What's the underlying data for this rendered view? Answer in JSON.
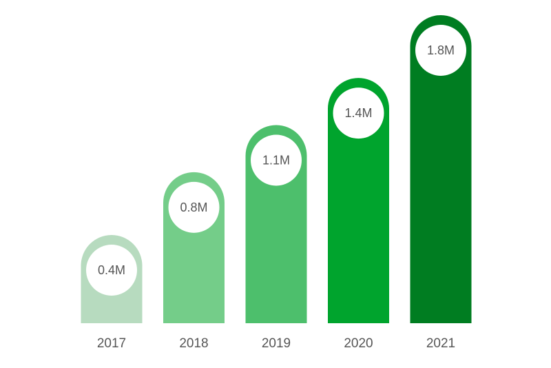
{
  "chart_data": {
    "type": "bar",
    "categories": [
      "2017",
      "2018",
      "2019",
      "2020",
      "2021"
    ],
    "values": [
      0.4,
      0.8,
      1.1,
      1.4,
      1.8
    ],
    "value_labels": [
      "0.4M",
      "0.8M",
      "1.1M",
      "1.4M",
      "1.8M"
    ],
    "bar_colors": [
      "#b7dbbf",
      "#74cd89",
      "#4dbf6c",
      "#00a42d",
      "#007d21"
    ],
    "label_circle_color": "#ffffff",
    "grid": false,
    "legend": "none"
  }
}
